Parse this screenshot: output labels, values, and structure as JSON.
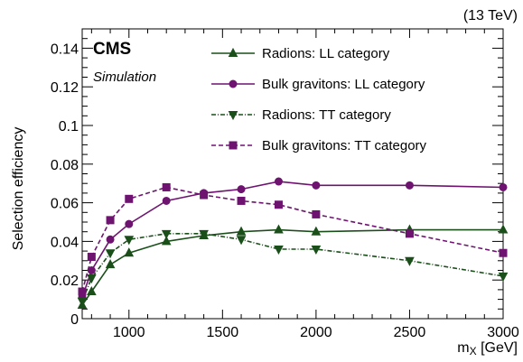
{
  "chart_data": {
    "type": "line",
    "title": "",
    "experiment": "CMS",
    "subtitle": "Simulation",
    "energy": "(13 TeV)",
    "xlabel_main": "m",
    "xlabel_sub": "X",
    "xlabel_unit": " [GeV]",
    "ylabel": "Selection efficiency",
    "xlim": [
      750,
      3000
    ],
    "ylim": [
      0,
      0.15
    ],
    "xticks": [
      1000,
      1500,
      2000,
      2500,
      3000
    ],
    "xtick_labels": [
      "1000",
      "1500",
      "2000",
      "2500",
      "3000"
    ],
    "yticks": [
      0,
      0.02,
      0.04,
      0.06,
      0.08,
      0.1,
      0.12,
      0.14
    ],
    "ytick_labels": [
      "0",
      "0.02",
      "0.04",
      "0.06",
      "0.08",
      "0.1",
      "0.12",
      "0.14"
    ],
    "grid": false,
    "legend_position": "top-right",
    "series": [
      {
        "name": "Radions: LL category",
        "color": "#1a4f1a",
        "line_style": "solid",
        "marker": "triangle-up",
        "x": [
          750,
          800,
          900,
          1000,
          1200,
          1400,
          1600,
          1800,
          2000,
          2500,
          3000
        ],
        "y": [
          0.007,
          0.014,
          0.028,
          0.034,
          0.04,
          0.043,
          0.045,
          0.046,
          0.045,
          0.046,
          0.046
        ]
      },
      {
        "name": "Bulk gravitons: LL category",
        "color": "#6e1470",
        "line_style": "solid",
        "marker": "circle",
        "x": [
          750,
          800,
          900,
          1000,
          1200,
          1400,
          1600,
          1800,
          2000,
          2500,
          3000
        ],
        "y": [
          0.011,
          0.025,
          0.041,
          0.049,
          0.061,
          0.065,
          0.067,
          0.071,
          0.069,
          0.069,
          0.068
        ]
      },
      {
        "name": "Radions: TT category",
        "color": "#1a4f1a",
        "line_style": "dashdot",
        "marker": "triangle-down",
        "x": [
          750,
          800,
          900,
          1000,
          1200,
          1400,
          1600,
          1800,
          2000,
          2500,
          3000
        ],
        "y": [
          0.009,
          0.021,
          0.034,
          0.041,
          0.044,
          0.044,
          0.041,
          0.036,
          0.036,
          0.03,
          0.022
        ]
      },
      {
        "name": "Bulk gravitons: TT category",
        "color": "#6e1470",
        "line_style": "dashed",
        "marker": "square",
        "x": [
          750,
          800,
          900,
          1000,
          1200,
          1400,
          1600,
          1800,
          2000,
          2500,
          3000
        ],
        "y": [
          0.014,
          0.032,
          0.051,
          0.062,
          0.068,
          0.064,
          0.061,
          0.059,
          0.054,
          0.044,
          0.034
        ]
      }
    ]
  }
}
